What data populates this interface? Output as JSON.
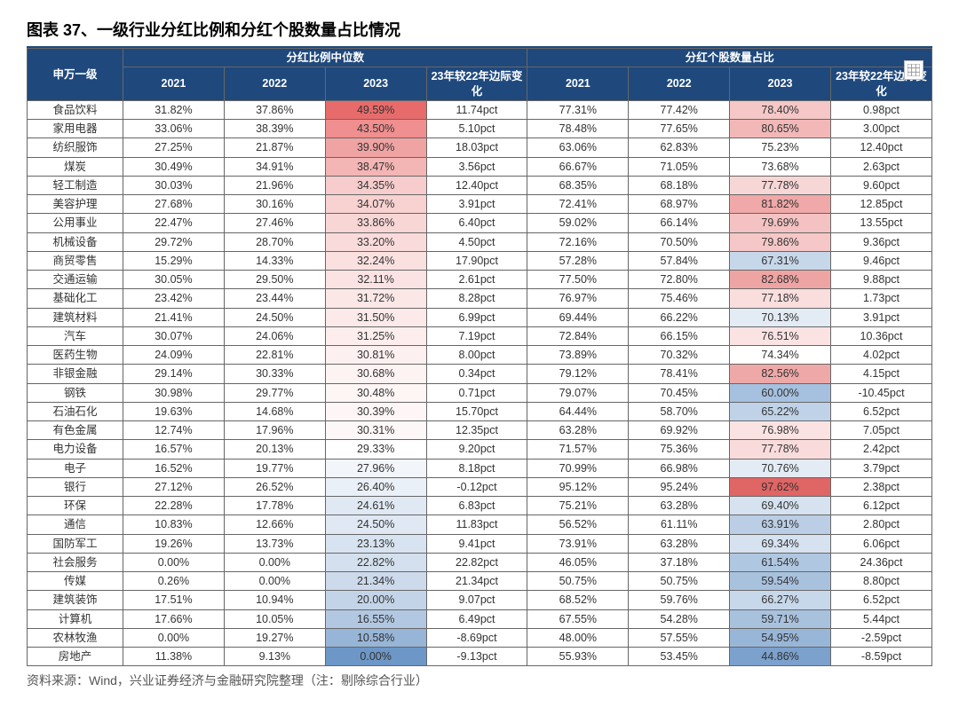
{
  "title": "图表 37、一级行业分红比例和分红个股数量占比情况",
  "source": "资料来源：Wind，兴业证券经济与金融研究院整理（注：剔除综合行业）",
  "headers": {
    "corner": "申万一级",
    "group1": "分红比例中位数",
    "group2": "分红个股数量占比",
    "sub": [
      "2021",
      "2022",
      "2023",
      "23年较22年边际变化"
    ]
  },
  "colors": {
    "header_bg": "#1f497d",
    "header_fg": "#ffffff",
    "border": "#666666"
  },
  "rows": [
    {
      "label": "食品饮料",
      "a": [
        "31.82%",
        "37.86%",
        "49.59%",
        "11.74pct"
      ],
      "b": [
        "77.31%",
        "77.42%",
        "78.40%",
        "0.98pct"
      ],
      "ac": [
        "#fff",
        "#fff",
        "#e86b6b",
        "#fff"
      ],
      "bc": [
        "#fff",
        "#fff",
        "#f5c7c7",
        "#fff"
      ]
    },
    {
      "label": "家用电器",
      "a": [
        "33.06%",
        "38.39%",
        "43.50%",
        "5.10pct"
      ],
      "b": [
        "78.48%",
        "77.65%",
        "80.65%",
        "3.00pct"
      ],
      "ac": [
        "#fff",
        "#fff",
        "#ef8f8f",
        "#fff"
      ],
      "bc": [
        "#fff",
        "#fff",
        "#f2b8b8",
        "#fff"
      ]
    },
    {
      "label": "纺织服饰",
      "a": [
        "27.25%",
        "21.87%",
        "39.90%",
        "18.03pct"
      ],
      "b": [
        "63.06%",
        "62.83%",
        "75.23%",
        "12.40pct"
      ],
      "ac": [
        "#fff",
        "#fff",
        "#f0a3a3",
        "#fff"
      ],
      "bc": [
        "#fff",
        "#fff",
        "#fff",
        "#fff"
      ]
    },
    {
      "label": "煤炭",
      "a": [
        "30.49%",
        "34.91%",
        "38.47%",
        "3.56pct"
      ],
      "b": [
        "66.67%",
        "71.05%",
        "73.68%",
        "2.63pct"
      ],
      "ac": [
        "#fff",
        "#fff",
        "#f4b5b5",
        "#fff"
      ],
      "bc": [
        "#fff",
        "#fff",
        "#fff",
        "#fff"
      ]
    },
    {
      "label": "轻工制造",
      "a": [
        "30.03%",
        "21.96%",
        "34.35%",
        "12.40pct"
      ],
      "b": [
        "68.35%",
        "68.18%",
        "77.78%",
        "9.60pct"
      ],
      "ac": [
        "#fff",
        "#fff",
        "#f7cccc",
        "#fff"
      ],
      "bc": [
        "#fff",
        "#fff",
        "#f7d6d6",
        "#fff"
      ]
    },
    {
      "label": "美容护理",
      "a": [
        "27.68%",
        "30.16%",
        "34.07%",
        "3.91pct"
      ],
      "b": [
        "72.41%",
        "68.97%",
        "81.82%",
        "12.85pct"
      ],
      "ac": [
        "#fff",
        "#fff",
        "#f8d1d1",
        "#fff"
      ],
      "bc": [
        "#fff",
        "#fff",
        "#f0a8a8",
        "#fff"
      ]
    },
    {
      "label": "公用事业",
      "a": [
        "22.47%",
        "27.46%",
        "33.86%",
        "6.40pct"
      ],
      "b": [
        "59.02%",
        "66.14%",
        "79.69%",
        "13.55pct"
      ],
      "ac": [
        "#fff",
        "#fff",
        "#f9d6d6",
        "#fff"
      ],
      "bc": [
        "#fff",
        "#fff",
        "#f4c2c2",
        "#fff"
      ]
    },
    {
      "label": "机械设备",
      "a": [
        "29.72%",
        "28.70%",
        "33.20%",
        "4.50pct"
      ],
      "b": [
        "72.16%",
        "70.50%",
        "79.86%",
        "9.36pct"
      ],
      "ac": [
        "#fff",
        "#fff",
        "#fadbdb",
        "#fff"
      ],
      "bc": [
        "#fff",
        "#fff",
        "#f5c7c7",
        "#fff"
      ]
    },
    {
      "label": "商贸零售",
      "a": [
        "15.29%",
        "14.33%",
        "32.24%",
        "17.90pct"
      ],
      "b": [
        "57.28%",
        "57.84%",
        "67.31%",
        "9.46pct"
      ],
      "ac": [
        "#fff",
        "#fff",
        "#fbe0e0",
        "#fff"
      ],
      "bc": [
        "#fff",
        "#fff",
        "#c7d7ea",
        "#fff"
      ]
    },
    {
      "label": "交通运输",
      "a": [
        "30.05%",
        "29.50%",
        "32.11%",
        "2.61pct"
      ],
      "b": [
        "77.50%",
        "72.80%",
        "82.68%",
        "9.88pct"
      ],
      "ac": [
        "#fff",
        "#fff",
        "#fbe3e3",
        "#fff"
      ],
      "bc": [
        "#fff",
        "#fff",
        "#efa4a4",
        "#fff"
      ]
    },
    {
      "label": "基础化工",
      "a": [
        "23.42%",
        "23.44%",
        "31.72%",
        "8.28pct"
      ],
      "b": [
        "76.97%",
        "75.46%",
        "77.18%",
        "1.73pct"
      ],
      "ac": [
        "#fff",
        "#fff",
        "#fce7e7",
        "#fff"
      ],
      "bc": [
        "#fff",
        "#fff",
        "#fadede",
        "#fff"
      ]
    },
    {
      "label": "建筑材料",
      "a": [
        "21.41%",
        "24.50%",
        "31.50%",
        "6.99pct"
      ],
      "b": [
        "69.44%",
        "66.22%",
        "70.13%",
        "3.91pct"
      ],
      "ac": [
        "#fff",
        "#fff",
        "#fceaea",
        "#fff"
      ],
      "bc": [
        "#fff",
        "#fff",
        "#e3ebf4",
        "#fff"
      ]
    },
    {
      "label": "汽车",
      "a": [
        "30.07%",
        "24.06%",
        "31.25%",
        "7.19pct"
      ],
      "b": [
        "72.84%",
        "66.15%",
        "76.51%",
        "10.36pct"
      ],
      "ac": [
        "#fff",
        "#fff",
        "#fdeded",
        "#fff"
      ],
      "bc": [
        "#fff",
        "#fff",
        "#fbe3e3",
        "#fff"
      ]
    },
    {
      "label": "医药生物",
      "a": [
        "24.09%",
        "22.81%",
        "30.81%",
        "8.00pct"
      ],
      "b": [
        "73.89%",
        "70.32%",
        "74.34%",
        "4.02pct"
      ],
      "ac": [
        "#fff",
        "#fff",
        "#fdf0f0",
        "#fff"
      ],
      "bc": [
        "#fff",
        "#fff",
        "#fff",
        "#fff"
      ]
    },
    {
      "label": "非银金融",
      "a": [
        "29.14%",
        "30.33%",
        "30.68%",
        "0.34pct"
      ],
      "b": [
        "79.12%",
        "78.41%",
        "82.56%",
        "4.15pct"
      ],
      "ac": [
        "#fff",
        "#fff",
        "#fef3f3",
        "#fff"
      ],
      "bc": [
        "#fff",
        "#fff",
        "#efa8a8",
        "#fff"
      ]
    },
    {
      "label": "钢铁",
      "a": [
        "30.98%",
        "29.77%",
        "30.48%",
        "0.71pct"
      ],
      "b": [
        "79.07%",
        "70.45%",
        "60.00%",
        "-10.45pct"
      ],
      "ac": [
        "#fff",
        "#fff",
        "#fef5f5",
        "#fff"
      ],
      "bc": [
        "#fff",
        "#fff",
        "#a6c1df",
        "#fff"
      ]
    },
    {
      "label": "石油石化",
      "a": [
        "19.63%",
        "14.68%",
        "30.39%",
        "15.70pct"
      ],
      "b": [
        "64.44%",
        "58.70%",
        "65.22%",
        "6.52pct"
      ],
      "ac": [
        "#fff",
        "#fff",
        "#fef6f6",
        "#fff"
      ],
      "bc": [
        "#fff",
        "#fff",
        "#c0d2e7",
        "#fff"
      ]
    },
    {
      "label": "有色金属",
      "a": [
        "12.74%",
        "17.96%",
        "30.31%",
        "12.35pct"
      ],
      "b": [
        "63.28%",
        "69.92%",
        "76.98%",
        "7.05pct"
      ],
      "ac": [
        "#fff",
        "#fff",
        "#fef7f7",
        "#fff"
      ],
      "bc": [
        "#fff",
        "#fff",
        "#fbe3e3",
        "#fff"
      ]
    },
    {
      "label": "电力设备",
      "a": [
        "16.57%",
        "20.13%",
        "29.33%",
        "9.20pct"
      ],
      "b": [
        "71.57%",
        "75.36%",
        "77.78%",
        "2.42pct"
      ],
      "ac": [
        "#fff",
        "#fff",
        "#fff",
        "#fff"
      ],
      "bc": [
        "#fff",
        "#fff",
        "#f9dbdb",
        "#fff"
      ]
    },
    {
      "label": "电子",
      "a": [
        "16.52%",
        "19.77%",
        "27.96%",
        "8.18pct"
      ],
      "b": [
        "70.99%",
        "66.98%",
        "70.76%",
        "3.79pct"
      ],
      "ac": [
        "#fff",
        "#fff",
        "#f2f6fb",
        "#fff"
      ],
      "bc": [
        "#fff",
        "#fff",
        "#e3ebf4",
        "#fff"
      ]
    },
    {
      "label": "银行",
      "a": [
        "27.12%",
        "26.52%",
        "26.40%",
        "-0.12pct"
      ],
      "b": [
        "95.12%",
        "95.24%",
        "97.62%",
        "2.38pct"
      ],
      "ac": [
        "#fff",
        "#fff",
        "#eaf0f8",
        "#fff"
      ],
      "bc": [
        "#fff",
        "#fff",
        "#e06565",
        "#fff"
      ]
    },
    {
      "label": "环保",
      "a": [
        "22.28%",
        "17.78%",
        "24.61%",
        "6.83pct"
      ],
      "b": [
        "75.21%",
        "63.28%",
        "69.40%",
        "6.12pct"
      ],
      "ac": [
        "#fff",
        "#fff",
        "#e0e9f3",
        "#fff"
      ],
      "bc": [
        "#fff",
        "#fff",
        "#d6e2f0",
        "#fff"
      ]
    },
    {
      "label": "通信",
      "a": [
        "10.83%",
        "12.66%",
        "24.50%",
        "11.83pct"
      ],
      "b": [
        "56.52%",
        "61.11%",
        "63.91%",
        "2.80pct"
      ],
      "ac": [
        "#fff",
        "#fff",
        "#dfe8f3",
        "#fff"
      ],
      "bc": [
        "#fff",
        "#fff",
        "#bbcee5",
        "#fff"
      ]
    },
    {
      "label": "国防军工",
      "a": [
        "19.26%",
        "13.73%",
        "23.13%",
        "9.41pct"
      ],
      "b": [
        "73.91%",
        "63.28%",
        "69.34%",
        "6.06pct"
      ],
      "ac": [
        "#fff",
        "#fff",
        "#d7e3f0",
        "#fff"
      ],
      "bc": [
        "#fff",
        "#fff",
        "#d6e2f0",
        "#fff"
      ]
    },
    {
      "label": "社会服务",
      "a": [
        "0.00%",
        "0.00%",
        "22.82%",
        "22.82pct"
      ],
      "b": [
        "46.05%",
        "37.18%",
        "61.54%",
        "24.36pct"
      ],
      "ac": [
        "#fff",
        "#fff",
        "#d4e0ee",
        "#fff"
      ],
      "bc": [
        "#fff",
        "#fff",
        "#b0c7e1",
        "#fff"
      ]
    },
    {
      "label": "传媒",
      "a": [
        "0.26%",
        "0.00%",
        "21.34%",
        "21.34pct"
      ],
      "b": [
        "50.75%",
        "50.75%",
        "59.54%",
        "8.80pct"
      ],
      "ac": [
        "#fff",
        "#fff",
        "#ccdaeb",
        "#fff"
      ],
      "bc": [
        "#fff",
        "#fff",
        "#a8c2de",
        "#fff"
      ]
    },
    {
      "label": "建筑装饰",
      "a": [
        "17.51%",
        "10.94%",
        "20.00%",
        "9.07pct"
      ],
      "b": [
        "68.52%",
        "59.76%",
        "66.27%",
        "6.52pct"
      ],
      "ac": [
        "#fff",
        "#fff",
        "#c4d4e8",
        "#fff"
      ],
      "bc": [
        "#fff",
        "#fff",
        "#c8d8eb",
        "#fff"
      ]
    },
    {
      "label": "计算机",
      "a": [
        "17.66%",
        "10.05%",
        "16.55%",
        "6.49pct"
      ],
      "b": [
        "67.55%",
        "54.28%",
        "59.71%",
        "5.44pct"
      ],
      "ac": [
        "#fff",
        "#fff",
        "#b2c8e2",
        "#fff"
      ],
      "bc": [
        "#fff",
        "#fff",
        "#a8c2de",
        "#fff"
      ]
    },
    {
      "label": "农林牧渔",
      "a": [
        "0.00%",
        "19.27%",
        "10.58%",
        "-8.69pct"
      ],
      "b": [
        "48.00%",
        "57.55%",
        "54.95%",
        "-2.59pct"
      ],
      "ac": [
        "#fff",
        "#fff",
        "#97b5d7",
        "#fff"
      ],
      "bc": [
        "#fff",
        "#fff",
        "#98b6d7",
        "#fff"
      ]
    },
    {
      "label": "房地产",
      "a": [
        "11.38%",
        "9.13%",
        "0.00%",
        "-9.13pct"
      ],
      "b": [
        "55.93%",
        "53.45%",
        "44.86%",
        "-8.59pct"
      ],
      "ac": [
        "#fff",
        "#fff",
        "#6d97c6",
        "#fff"
      ],
      "bc": [
        "#fff",
        "#fff",
        "#7ba1cc",
        "#fff"
      ]
    }
  ]
}
